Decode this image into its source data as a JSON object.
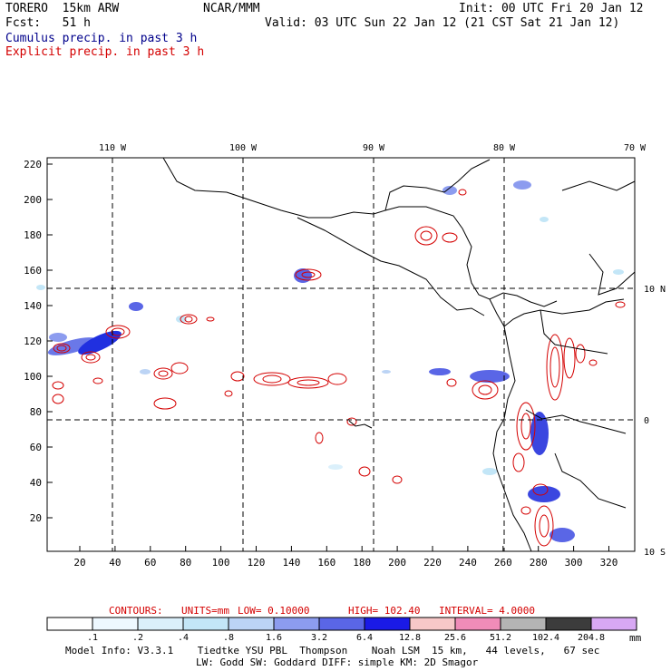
{
  "header": {
    "model": "TORERO  15km ARW",
    "org": "NCAR/MMM",
    "init": "Init: 00 UTC Fri 20 Jan 12",
    "fcst": "Fcst:   51 h",
    "valid": "Valid: 03 UTC Sun 22 Jan 12 (21 CST Sat 21 Jan 12)",
    "legend_cumulus": "Cumulus precip. in past 3 h",
    "legend_explicit": "Explicit precip. in past 3 h"
  },
  "map": {
    "lon_labels": [
      "110 W",
      "100 W",
      "90 W",
      "80 W",
      "70 W"
    ],
    "lat_labels": [
      "10 N",
      "0",
      "10 S"
    ],
    "y_ticks": [
      "220",
      "200",
      "180",
      "160",
      "140",
      "120",
      "100",
      "80",
      "60",
      "40",
      "20"
    ],
    "x_ticks": [
      "20",
      "40",
      "60",
      "80",
      "100",
      "120",
      "140",
      "160",
      "180",
      "200",
      "220",
      "240",
      "260",
      "280",
      "300",
      "320"
    ]
  },
  "contours": {
    "label": "CONTOURS:",
    "units": "UNITS=mm",
    "low": "LOW= 0.10000",
    "high": "HIGH= 102.40",
    "interval": "INTERVAL= 4.0000"
  },
  "colorbar": {
    "unit": "mm",
    "labels": [
      ".1",
      ".2",
      ".4",
      ".8",
      "1.6",
      "3.2",
      "6.4",
      "12.8",
      "25.6",
      "51.2",
      "102.4",
      "204.8"
    ],
    "colors": [
      "#ffffff",
      "#eef8ff",
      "#dbf0fb",
      "#c3e6f7",
      "#bcd4f5",
      "#8c9cef",
      "#5a66e6",
      "#1a1ae6",
      "#f7c8c8",
      "#f08cb8",
      "#b4b4b4",
      "#3c3c3c",
      "#d8a8f4"
    ]
  },
  "footer": {
    "line1": "Model Info: V3.3.1    Tiedtke YSU PBL  Thompson    Noah LSM  15 km,   44 levels,   67 sec",
    "line2": "LW: Godd SW: Goddard DIFF: simple KM: 2D Smagor"
  }
}
